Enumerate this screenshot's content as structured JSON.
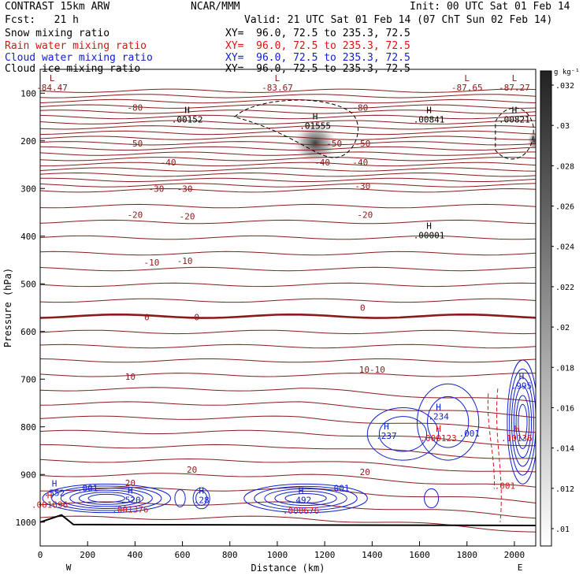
{
  "header": {
    "model": "CONTRAST 15km ARW",
    "org": "NCAR/MMM",
    "init": "Init: 00 UTC Sat 01 Feb 14",
    "fcst": "Fcst:   21 h",
    "valid": "Valid: 21 UTC Sat 01 Feb 14 (07 ChT Sun 02 Feb 14)",
    "fields": [
      {
        "name": "Snow mixing ratio",
        "xy": "XY=  96.0, 72.5 to 235.3, 72.5",
        "color": "#000000"
      },
      {
        "name": "Rain water mixing ratio",
        "xy": "XY=  96.0, 72.5 to 235.3, 72.5",
        "color": "#e01010"
      },
      {
        "name": "Cloud water mixing ratio",
        "xy": "XY=  96.0, 72.5 to 235.3, 72.5",
        "color": "#1020d0"
      },
      {
        "name": "Cloud ice mixing ratio",
        "xy": "XY=  96.0, 72.5 to 235.3, 72.5",
        "color": "#000000"
      }
    ]
  },
  "chart_data": {
    "type": "line",
    "xlabel": "Distance (km)",
    "ylabel": "Pressure (hPa)",
    "xlim": [
      0,
      2090
    ],
    "ylim": [
      50,
      1050
    ],
    "x_ticks": [
      0,
      200,
      400,
      600,
      800,
      1000,
      1200,
      1400,
      1600,
      1800,
      2000
    ],
    "y_ticks": [
      100,
      200,
      300,
      400,
      500,
      600,
      700,
      800,
      900,
      1000
    ],
    "x_end_labels": {
      "left": "W",
      "right": "E"
    },
    "colorbar": {
      "unit": "g kg⁻¹",
      "ticks": [
        ".01",
        ".012",
        ".014",
        ".016",
        ".018",
        ".02",
        ".022",
        ".024",
        ".026",
        ".028",
        ".03",
        ".032"
      ]
    },
    "temperature_contour_labels": [
      {
        "text": "-80",
        "x": 400,
        "p": 130
      },
      {
        "text": "-80",
        "x": 1350,
        "p": 130
      },
      {
        "text": "-50",
        "x": 400,
        "p": 205
      },
      {
        "text": "-50",
        "x": 1240,
        "p": 205
      },
      {
        "text": "-50",
        "x": 1360,
        "p": 205
      },
      {
        "text": "-40",
        "x": 540,
        "p": 245
      },
      {
        "text": "-40",
        "x": 1190,
        "p": 245
      },
      {
        "text": "-40",
        "x": 1350,
        "p": 245
      },
      {
        "text": "-30",
        "x": 490,
        "p": 300
      },
      {
        "text": "-30",
        "x": 610,
        "p": 300
      },
      {
        "text": "-30",
        "x": 1360,
        "p": 295
      },
      {
        "text": "-20",
        "x": 400,
        "p": 355
      },
      {
        "text": "-20",
        "x": 620,
        "p": 358
      },
      {
        "text": "-20",
        "x": 1370,
        "p": 355
      },
      {
        "text": "-10",
        "x": 470,
        "p": 455
      },
      {
        "text": "-10",
        "x": 610,
        "p": 452
      },
      {
        "text": "0",
        "x": 450,
        "p": 570
      },
      {
        "text": "0",
        "x": 660,
        "p": 570
      },
      {
        "text": "0",
        "x": 1360,
        "p": 550
      },
      {
        "text": "10",
        "x": 380,
        "p": 695
      },
      {
        "text": "10-10",
        "x": 1400,
        "p": 680
      },
      {
        "text": "20",
        "x": 380,
        "p": 918
      },
      {
        "text": "20",
        "x": 640,
        "p": 890
      },
      {
        "text": "20",
        "x": 1370,
        "p": 895
      }
    ],
    "extrema_labels": [
      {
        "mark": "L",
        "value": "-84.47",
        "x": 50,
        "p": 85,
        "color": "#8b1a1a"
      },
      {
        "mark": "L",
        "value": "-83.67",
        "x": 1000,
        "p": 85,
        "color": "#8b1a1a"
      },
      {
        "mark": "L",
        "value": "-87.65",
        "x": 1800,
        "p": 85,
        "color": "#8b1a1a"
      },
      {
        "mark": "L",
        "value": "-87.27",
        "x": 2000,
        "p": 85,
        "color": "#8b1a1a"
      },
      {
        "mark": "H",
        "value": ".00152",
        "x": 620,
        "p": 152,
        "color": "#000000"
      },
      {
        "mark": "H",
        "value": ".01555",
        "x": 1160,
        "p": 165,
        "color": "#000000"
      },
      {
        "mark": "H",
        "value": ".00841",
        "x": 1640,
        "p": 152,
        "color": "#000000"
      },
      {
        "mark": "H",
        "value": ".00821",
        "x": 2000,
        "p": 152,
        "color": "#000000"
      },
      {
        "mark": "H",
        "value": ".00001",
        "x": 1640,
        "p": 395,
        "color": "#000000"
      },
      {
        "mark": "H",
        "value": ".552",
        "x": 60,
        "p": 935,
        "color": "#1020d0"
      },
      {
        "mark": "H",
        "value": ".001696",
        "x": 40,
        "p": 960,
        "color": "#e01010"
      },
      {
        "mark": "H",
        "value": ".520",
        "x": 380,
        "p": 950,
        "color": "#1020d0"
      },
      {
        "mark": "",
        "value": ".001376",
        "x": 380,
        "p": 970,
        "color": "#e01010"
      },
      {
        "mark": "H",
        "value": ".28",
        "x": 680,
        "p": 950,
        "color": "#1020d0"
      },
      {
        "mark": "H",
        "value": ".492",
        "x": 1100,
        "p": 950,
        "color": "#1020d0"
      },
      {
        "mark": "",
        "value": ".000676",
        "x": 1100,
        "p": 972,
        "color": "#e01010"
      },
      {
        "mark": "",
        "value": ".001",
        "x": 200,
        "p": 925,
        "color": "#1020d0"
      },
      {
        "mark": "",
        "value": ".001",
        "x": 1260,
        "p": 925,
        "color": "#1020d0"
      },
      {
        "mark": "H",
        "value": ".237",
        "x": 1460,
        "p": 815,
        "color": "#1020d0"
      },
      {
        "mark": "H",
        "value": ".234",
        "x": 1680,
        "p": 775,
        "color": "#1020d0"
      },
      {
        "mark": "H",
        "value": ".000123",
        "x": 1680,
        "p": 820,
        "color": "#e01010"
      },
      {
        "mark": "",
        "value": ".001",
        "x": 1810,
        "p": 810,
        "color": "#1020d0"
      },
      {
        "mark": "H",
        "value": ".995",
        "x": 2030,
        "p": 710,
        "color": "#1020d0"
      },
      {
        "mark": "H",
        "value": ".10136",
        "x": 2010,
        "p": 820,
        "color": "#e01010"
      },
      {
        "mark": "",
        "value": ".001",
        "x": 1960,
        "p": 920,
        "color": "#e01010"
      }
    ],
    "shaded_maximum": {
      "x": 1160,
      "p": 205,
      "label": "cloud ice maximum"
    }
  }
}
